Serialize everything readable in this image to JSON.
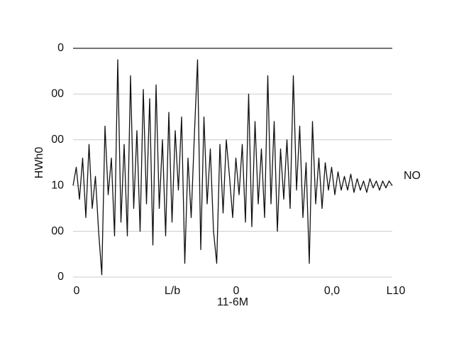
{
  "chart_data": {
    "type": "line",
    "y_label": "HWh0",
    "x_label": "11-6M",
    "annotation": "NO",
    "x": [
      0,
      1,
      2,
      3,
      4,
      5,
      6,
      7,
      8,
      9,
      10,
      11,
      12,
      13,
      14,
      15,
      16,
      17,
      18,
      19,
      20,
      21,
      22,
      23,
      24,
      25,
      26,
      27,
      28,
      29,
      30,
      31,
      32,
      33,
      34,
      35,
      36,
      37,
      38,
      39,
      40,
      41,
      42,
      43,
      44,
      45,
      46,
      47,
      48,
      49,
      50,
      51,
      52,
      53,
      54,
      55,
      56,
      57,
      58,
      59,
      60,
      61,
      62,
      63,
      64,
      65,
      66,
      67,
      68,
      69,
      70,
      71,
      72,
      73,
      74,
      75,
      76,
      77,
      78,
      79,
      80,
      81,
      82,
      83,
      84,
      85,
      86,
      87,
      88,
      89,
      90,
      91,
      92,
      93,
      94,
      95,
      96,
      97,
      98,
      99,
      100
    ],
    "series": [
      {
        "color": "#111111",
        "values": [
          2.0,
          2.4,
          1.7,
          2.6,
          1.3,
          2.9,
          1.5,
          2.2,
          1.0,
          0.05,
          3.3,
          1.8,
          2.6,
          0.9,
          4.75,
          1.2,
          2.9,
          0.9,
          4.4,
          1.5,
          3.2,
          1.0,
          4.1,
          1.6,
          3.9,
          0.7,
          4.2,
          1.5,
          3.0,
          0.9,
          3.6,
          1.2,
          3.2,
          1.9,
          3.5,
          0.3,
          2.6,
          1.3,
          3.1,
          4.75,
          0.6,
          3.5,
          1.6,
          2.8,
          1.0,
          0.3,
          2.9,
          1.4,
          3.0,
          2.2,
          1.3,
          2.6,
          1.8,
          2.9,
          1.2,
          4.0,
          1.1,
          3.4,
          1.6,
          2.8,
          1.3,
          4.4,
          1.6,
          3.4,
          1.0,
          2.8,
          1.7,
          3.0,
          1.5,
          4.4,
          1.9,
          3.3,
          1.3,
          2.5,
          0.3,
          3.4,
          1.6,
          2.6,
          1.5,
          2.5,
          1.9,
          2.4,
          1.8,
          2.3,
          1.9,
          2.2,
          1.9,
          2.25,
          1.85,
          2.15,
          1.9,
          2.1,
          1.85,
          2.15,
          1.95,
          2.1,
          1.9,
          2.1,
          1.95,
          2.1,
          2.0
        ]
      }
    ],
    "xlim": [
      0,
      100
    ],
    "xticks": [
      0,
      {
        "value": 30,
        "label": "L/b"
      },
      {
        "value": 50,
        "label": "0"
      },
      {
        "value": 80,
        "label": "0,0"
      },
      {
        "value": 100,
        "label": "L10"
      }
    ],
    "ylim": [
      0,
      5
    ],
    "yticks": [
      0,
      {
        "value": 1,
        "label": "00"
      },
      {
        "value": 2,
        "label": "10"
      },
      {
        "value": 3,
        "label": "00"
      },
      {
        "value": 4,
        "label": "00"
      },
      {
        "value": 5,
        "label": "0"
      }
    ],
    "grid": true
  }
}
